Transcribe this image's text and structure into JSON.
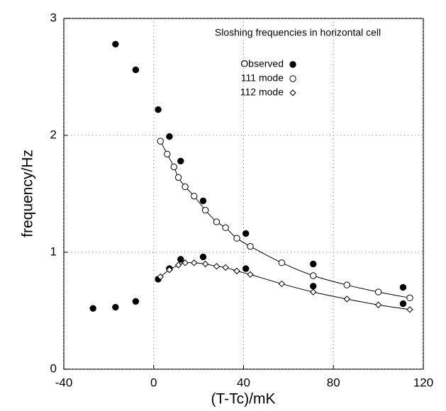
{
  "chart_data": {
    "type": "scatter",
    "annotation": "Sloshing frequencies in horizontal cell",
    "xlabel": "(T-Tc)/mK",
    "ylabel": "frequency/Hz",
    "xlim": [
      -40,
      120
    ],
    "ylim": [
      0,
      3
    ],
    "xticks": [
      -40,
      0,
      40,
      80,
      120
    ],
    "yticks": [
      0,
      1,
      2,
      3
    ],
    "grid": true,
    "series": [
      {
        "name": "Observed",
        "color": "#000000",
        "marker": "filled-circle",
        "line": false,
        "x": [
          -27,
          -17,
          -17,
          -8,
          -8,
          2,
          2,
          7,
          7,
          12,
          12,
          22,
          22,
          41,
          41,
          71,
          71,
          111,
          111
        ],
        "values": [
          0.52,
          2.78,
          0.53,
          2.56,
          0.58,
          2.22,
          0.77,
          1.99,
          0.86,
          1.78,
          0.94,
          1.44,
          0.96,
          1.16,
          0.86,
          0.9,
          0.71,
          0.7,
          0.56
        ]
      },
      {
        "name": "111 mode",
        "color": "#000000",
        "marker": "circle",
        "line": true,
        "x": [
          3,
          6,
          9,
          11,
          14,
          18,
          23,
          28,
          32,
          37,
          43,
          57,
          71,
          86,
          100,
          114
        ],
        "values": [
          1.95,
          1.84,
          1.73,
          1.64,
          1.56,
          1.48,
          1.36,
          1.26,
          1.21,
          1.12,
          1.05,
          0.91,
          0.8,
          0.72,
          0.66,
          0.61
        ]
      },
      {
        "name": "112 mode",
        "color": "#000000",
        "marker": "diamond",
        "line": true,
        "x": [
          3,
          7,
          11,
          14,
          18,
          23,
          28,
          32,
          37,
          43,
          57,
          71,
          86,
          100,
          114
        ],
        "values": [
          0.79,
          0.85,
          0.89,
          0.91,
          0.91,
          0.9,
          0.88,
          0.87,
          0.84,
          0.81,
          0.73,
          0.66,
          0.6,
          0.55,
          0.51
        ]
      }
    ]
  }
}
